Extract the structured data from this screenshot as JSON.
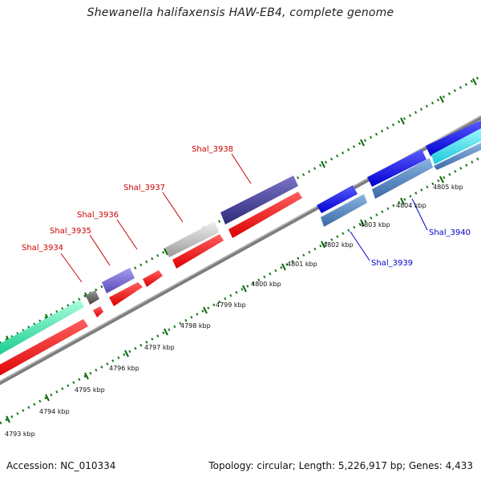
{
  "title": "Shewanella halifaxensis HAW-EB4, complete genome",
  "footer": {
    "accession": "Accession: NC_010334",
    "summary": "Topology: circular; Length: 5,226,917 bp; Genes: 4,433"
  },
  "colors": {
    "backbone": "#8a8a8a",
    "tick_green": "#1a7a1a",
    "forward_label": "#cc0000",
    "reverse_label": "#0000cc"
  },
  "scale": {
    "unit": "kbp",
    "labels": [
      "4793 kbp",
      "4794 kbp",
      "4795 kbp",
      "4796 kbp",
      "4797 kbp",
      "4798 kbp",
      "4799 kbp",
      "4800 kbp",
      "4801 kbp",
      "4802 kbp",
      "4803 kbp",
      "4804 kbp",
      "4805 kbp"
    ]
  },
  "genes": [
    {
      "id": "Shal_3934",
      "strand": "forward",
      "color": "#555555"
    },
    {
      "id": "Shal_3935",
      "strand": "forward",
      "color": "#6f5fcc"
    },
    {
      "id": "Shal_3936",
      "strand": "forward",
      "color": "#ee0000"
    },
    {
      "id": "Shal_3937",
      "strand": "forward",
      "color": "#bbbbbb"
    },
    {
      "id": "Shal_3938",
      "strand": "forward",
      "color": "#3a3488"
    },
    {
      "id": "Shal_3939",
      "strand": "reverse",
      "color": "#4a7ab8"
    },
    {
      "id": "Shal_3940",
      "strand": "reverse",
      "color": "#4a7ab8"
    }
  ]
}
